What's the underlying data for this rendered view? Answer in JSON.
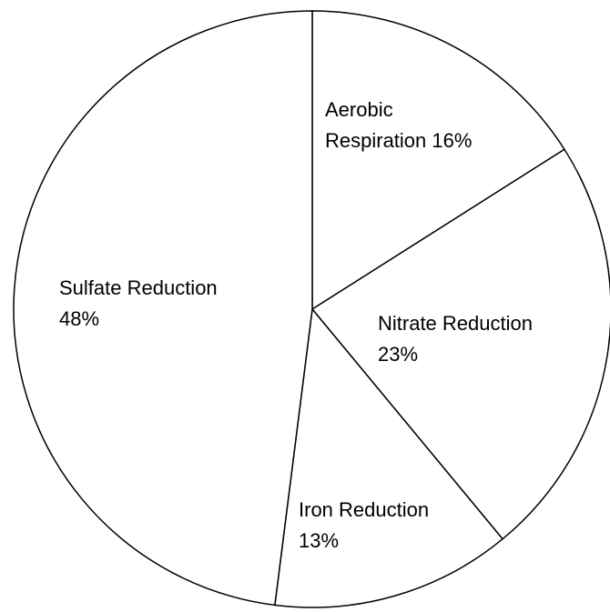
{
  "chart_data": {
    "type": "pie",
    "categories": [
      "Aerobic Respiration",
      "Nitrate Reduction",
      "Iron Reduction",
      "Sulfate Reduction"
    ],
    "values": [
      16,
      23,
      13,
      48
    ],
    "value_labels": [
      "16%",
      "23%",
      "13%",
      "48%"
    ],
    "color": "#ffffff"
  }
}
